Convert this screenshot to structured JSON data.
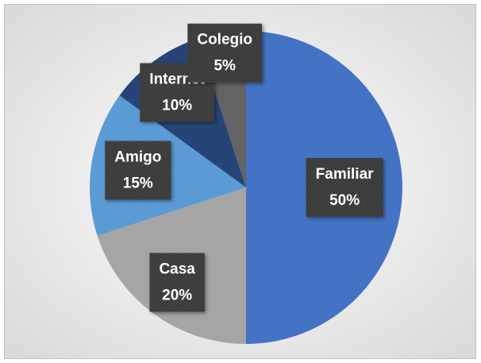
{
  "chart_data": {
    "type": "pie",
    "categories": [
      "Familiar",
      "Casa",
      "Amigo",
      "Internet",
      "Colegio"
    ],
    "values": [
      50,
      20,
      15,
      10,
      5
    ],
    "value_labels": [
      "50%",
      "20%",
      "15%",
      "10%",
      "5%"
    ],
    "colors": [
      "#4472c4",
      "#a5a5a5",
      "#5b9bd5",
      "#264478",
      "#636363"
    ]
  }
}
